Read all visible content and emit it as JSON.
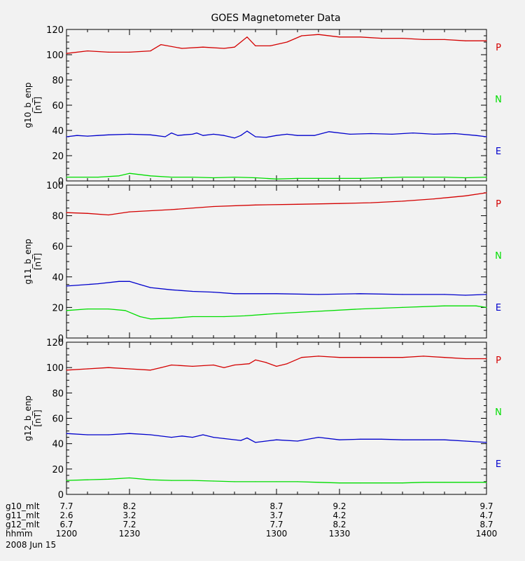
{
  "title": "GOES Magnetometer Data",
  "colors": {
    "background": "#f2f2f2",
    "axis": "#000000",
    "P": "#d40000",
    "N": "#00dd00",
    "E": "#0000cc"
  },
  "chart_data": [
    {
      "type": "line",
      "title": "GOES Magnetometer Data",
      "ylabel": "g10_b_enp",
      "unit": "[nT]",
      "xlim": [
        1200,
        1400
      ],
      "ylim": [
        0,
        120
      ],
      "yticks": [
        0,
        20,
        40,
        60,
        80,
        100,
        120
      ],
      "legend": [
        "P",
        "N",
        "E"
      ],
      "series": [
        {
          "name": "P",
          "color": "#d40000",
          "x": [
            1200,
            1210,
            1220,
            1230,
            1240,
            1245,
            1255,
            1265,
            1275,
            1280,
            1283,
            1286,
            1290,
            1297,
            1305,
            1312,
            1320,
            1330,
            1340,
            1350,
            1360,
            1370,
            1380,
            1390,
            1400
          ],
          "values": [
            101,
            103,
            102,
            102,
            103,
            108,
            105,
            106,
            105,
            106,
            110,
            114,
            107,
            107,
            110,
            115,
            116,
            114,
            114,
            113,
            113,
            112,
            112,
            111,
            111
          ]
        },
        {
          "name": "N",
          "color": "#00dd00",
          "x": [
            1200,
            1215,
            1225,
            1230,
            1240,
            1250,
            1260,
            1270,
            1280,
            1290,
            1300,
            1310,
            1320,
            1330,
            1340,
            1350,
            1360,
            1370,
            1380,
            1390,
            1400
          ],
          "values": [
            3,
            3,
            4,
            6,
            4,
            3,
            3,
            2.5,
            3,
            2.5,
            1.5,
            2,
            2,
            2,
            2,
            2.5,
            3,
            3,
            3,
            2.5,
            3
          ]
        },
        {
          "name": "E",
          "color": "#0000cc",
          "x": [
            1200,
            1205,
            1210,
            1215,
            1220,
            1230,
            1240,
            1247,
            1250,
            1253,
            1256,
            1260,
            1262,
            1265,
            1270,
            1275,
            1280,
            1283,
            1286,
            1290,
            1295,
            1300,
            1305,
            1310,
            1318,
            1325,
            1335,
            1345,
            1355,
            1365,
            1375,
            1385,
            1395,
            1400
          ],
          "values": [
            35,
            36,
            35.5,
            36,
            36.5,
            37,
            36.5,
            35,
            38,
            36,
            36.5,
            37,
            38,
            36,
            37,
            36,
            34,
            36,
            39.5,
            35,
            34.5,
            36,
            37,
            36,
            36,
            39,
            37,
            37.5,
            37,
            38,
            37,
            37.5,
            36,
            35
          ]
        }
      ]
    },
    {
      "type": "line",
      "ylabel": "g11_b_enp",
      "unit": "[nT]",
      "xlim": [
        1200,
        1400
      ],
      "ylim": [
        0,
        100
      ],
      "yticks": [
        0,
        20,
        40,
        60,
        80,
        100
      ],
      "legend": [
        "P",
        "N",
        "E"
      ],
      "series": [
        {
          "name": "P",
          "color": "#d40000",
          "x": [
            1200,
            1210,
            1220,
            1230,
            1250,
            1270,
            1290,
            1310,
            1330,
            1345,
            1360,
            1375,
            1390,
            1400
          ],
          "values": [
            82,
            81.5,
            80.5,
            82.5,
            84,
            86,
            87,
            87.5,
            88,
            88.5,
            89.5,
            91,
            93,
            95
          ]
        },
        {
          "name": "N",
          "color": "#00dd00",
          "x": [
            1200,
            1210,
            1220,
            1228,
            1235,
            1240,
            1250,
            1260,
            1275,
            1285,
            1300,
            1320,
            1340,
            1360,
            1380,
            1395,
            1400
          ],
          "values": [
            18,
            19,
            19,
            18,
            14,
            12.5,
            13,
            14,
            14,
            14.5,
            16,
            17.5,
            19,
            20,
            21,
            21,
            20
          ]
        },
        {
          "name": "E",
          "color": "#0000cc",
          "x": [
            1200,
            1215,
            1225,
            1230,
            1235,
            1240,
            1250,
            1260,
            1270,
            1280,
            1300,
            1320,
            1340,
            1360,
            1380,
            1390,
            1400
          ],
          "values": [
            34,
            35.5,
            37,
            37,
            35,
            33,
            31.5,
            30.5,
            30,
            29,
            29,
            28.5,
            29,
            28.5,
            28.5,
            28,
            28.5
          ]
        }
      ]
    },
    {
      "type": "line",
      "ylabel": "g12_b_enp",
      "unit": "[nT]",
      "xlim": [
        1200,
        1400
      ],
      "ylim": [
        0,
        120
      ],
      "yticks": [
        0,
        20,
        40,
        60,
        80,
        100,
        120
      ],
      "legend": [
        "P",
        "N",
        "E"
      ],
      "series": [
        {
          "name": "P",
          "color": "#d40000",
          "x": [
            1200,
            1210,
            1220,
            1230,
            1240,
            1245,
            1250,
            1260,
            1270,
            1275,
            1280,
            1287,
            1290,
            1295,
            1300,
            1305,
            1312,
            1320,
            1330,
            1340,
            1350,
            1360,
            1370,
            1380,
            1390,
            1400
          ],
          "values": [
            98,
            99,
            100,
            99,
            98,
            100,
            102,
            101,
            102,
            100,
            102,
            103,
            106,
            104,
            101,
            103,
            108,
            109,
            108,
            108,
            108,
            108,
            109,
            108,
            107,
            107
          ]
        },
        {
          "name": "N",
          "color": "#00dd00",
          "x": [
            1200,
            1210,
            1220,
            1230,
            1240,
            1250,
            1260,
            1270,
            1280,
            1290,
            1300,
            1310,
            1320,
            1330,
            1340,
            1350,
            1360,
            1370,
            1380,
            1390,
            1400
          ],
          "values": [
            11,
            11.5,
            12,
            13,
            11.5,
            11,
            11,
            10.5,
            10,
            10,
            10,
            10,
            9.5,
            9,
            9,
            9,
            9,
            9.5,
            9.5,
            9.5,
            9.5
          ]
        },
        {
          "name": "E",
          "color": "#0000cc",
          "x": [
            1200,
            1210,
            1220,
            1230,
            1240,
            1250,
            1255,
            1260,
            1265,
            1270,
            1275,
            1283,
            1286,
            1290,
            1295,
            1300,
            1310,
            1320,
            1330,
            1340,
            1350,
            1360,
            1370,
            1380,
            1390,
            1400
          ],
          "values": [
            48,
            47,
            47,
            48,
            47,
            45,
            46,
            45,
            47,
            45,
            44,
            42.5,
            44.5,
            41,
            42,
            43,
            42,
            45,
            43,
            43.5,
            43.5,
            43,
            43,
            43,
            42,
            41
          ]
        }
      ]
    }
  ],
  "xaxis": {
    "ticks": [
      1200,
      1230,
      1300,
      1330,
      1400
    ],
    "rows": [
      {
        "label": "g10_mlt",
        "values": [
          "7.7",
          "8.2",
          "8.7",
          "9.2",
          "9.7"
        ]
      },
      {
        "label": "g11_mlt",
        "values": [
          "2.6",
          "3.2",
          "3.7",
          "4.2",
          "4.7"
        ]
      },
      {
        "label": "g12_mlt",
        "values": [
          "6.7",
          "7.2",
          "7.7",
          "8.2",
          "8.7"
        ]
      },
      {
        "label": "hhmm",
        "values": [
          "1200",
          "1230",
          "1300",
          "1330",
          "1400"
        ]
      }
    ],
    "date": "2008 Jun 15"
  }
}
